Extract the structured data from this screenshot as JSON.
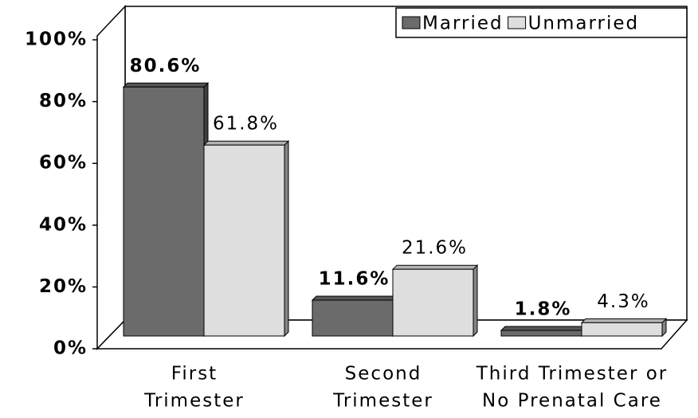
{
  "chart_data": {
    "type": "bar3d",
    "categories": [
      [
        "First",
        "Trimester"
      ],
      [
        "Second",
        "Trimester"
      ],
      [
        "Third Trimester or",
        "No Prenatal Care"
      ]
    ],
    "series": [
      {
        "name": "Married",
        "color": "#6b6b6b",
        "values": [
          80.6,
          11.6,
          1.8
        ],
        "value_labels": [
          "80.6%",
          "11.6%",
          "1.8%"
        ]
      },
      {
        "name": "Unmarried",
        "color": "#dedede",
        "values": [
          61.8,
          21.6,
          4.3
        ],
        "value_labels": [
          "61.8%",
          "21.6%",
          "4.3%"
        ]
      }
    ],
    "ylim": [
      0,
      100
    ],
    "yticks": [
      {
        "value": 0,
        "label": "0%"
      },
      {
        "value": 20,
        "label": "20%"
      },
      {
        "value": 40,
        "label": "40%"
      },
      {
        "value": 60,
        "label": "60%"
      },
      {
        "value": 80,
        "label": "80%"
      },
      {
        "value": 100,
        "label": "100%"
      }
    ],
    "legend": "top-right"
  }
}
